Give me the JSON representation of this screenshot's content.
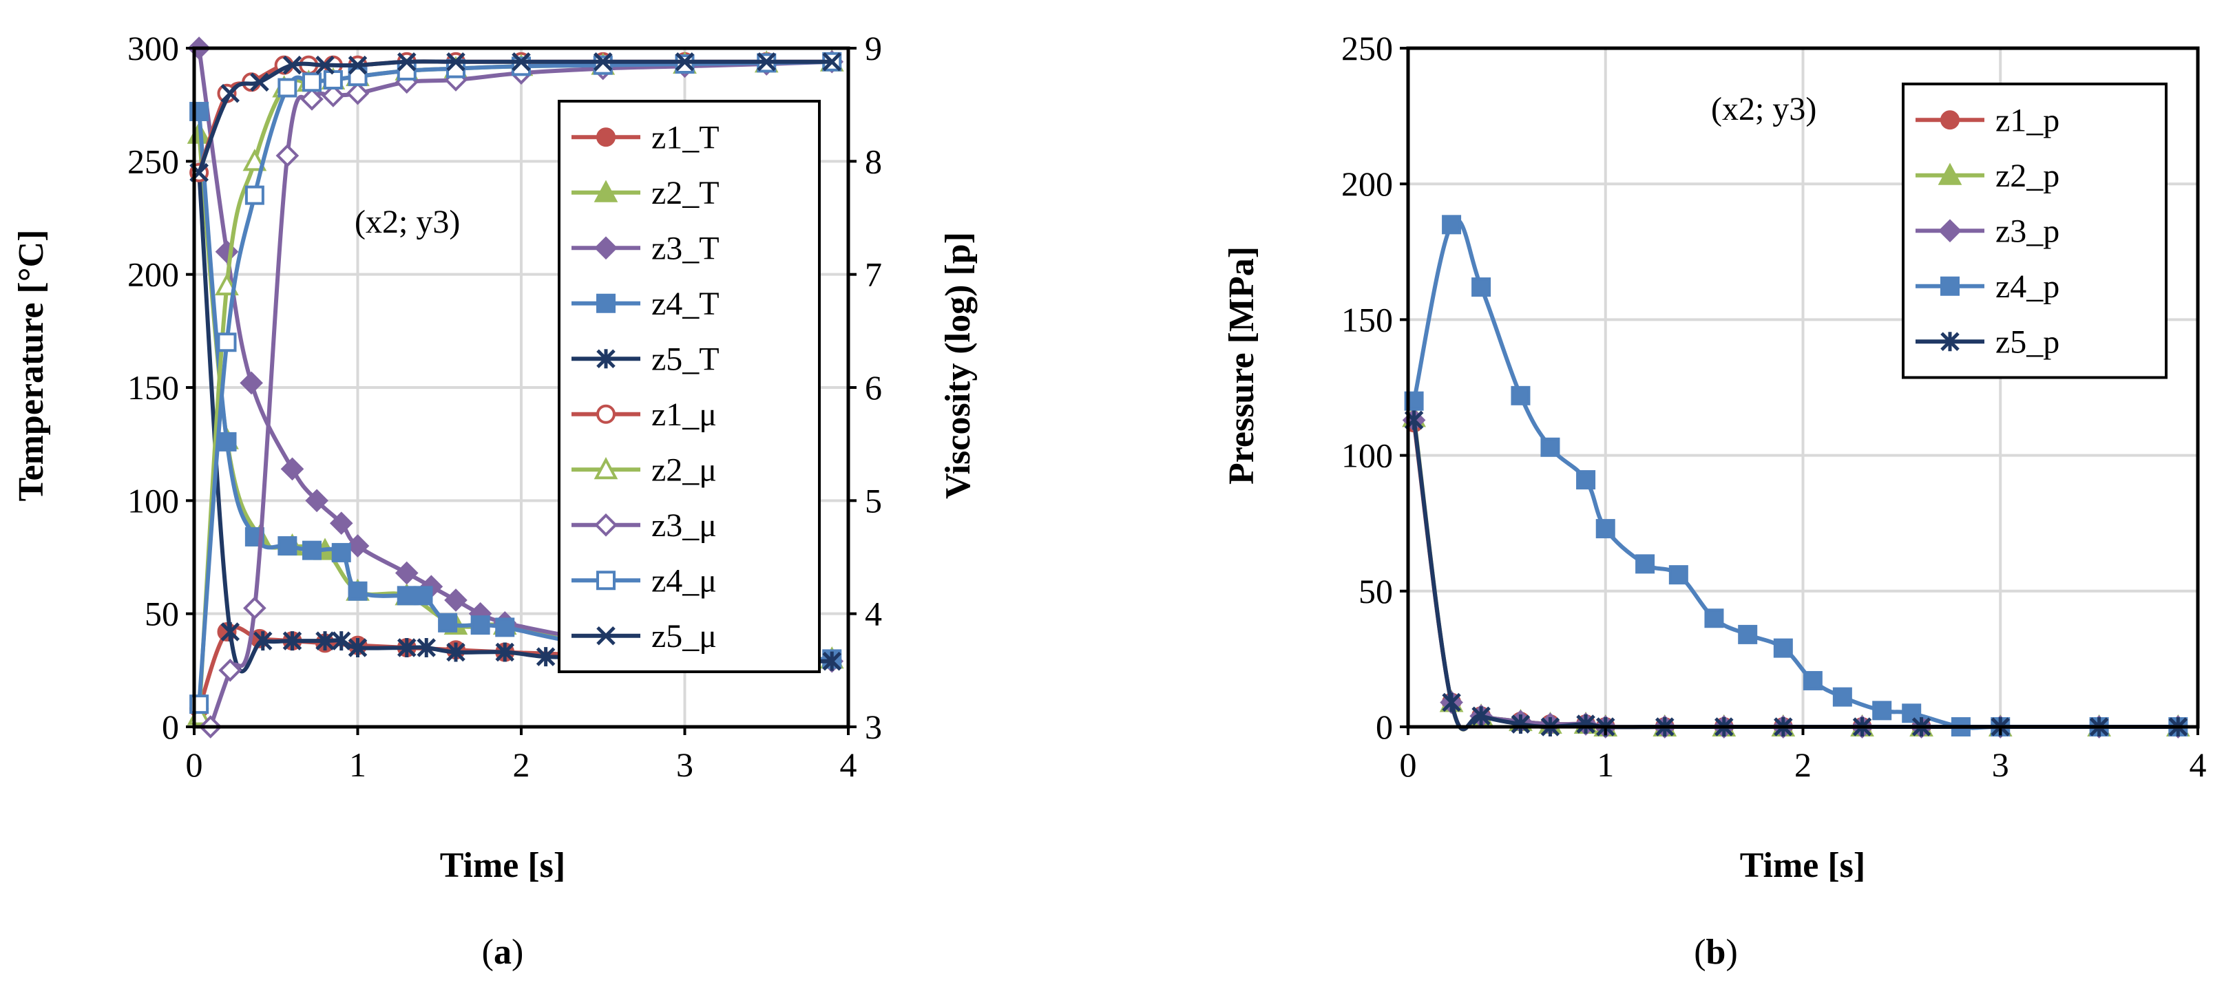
{
  "chart_data": [
    {
      "id": "a",
      "type": "line",
      "caption_prefix": "(",
      "caption_letter": "a",
      "caption_suffix": ")",
      "annotation": "(x2; y3)",
      "xlabel": "Time [s]",
      "ylabel": "Temperature [°C]",
      "y2label": "Viscosity (log) [p]",
      "xlim": [
        0,
        4
      ],
      "ylim": [
        0,
        300
      ],
      "y2lim": [
        3,
        9
      ],
      "xticks": [
        "0",
        "1",
        "2",
        "3",
        "4"
      ],
      "yticks": [
        "0",
        "50",
        "100",
        "150",
        "200",
        "250",
        "300"
      ],
      "y2ticks": [
        "3",
        "4",
        "5",
        "6",
        "7",
        "8",
        "9"
      ],
      "grid": true,
      "legend_position": "right",
      "series": [
        {
          "name": "z1_T",
          "axis": "left",
          "color": "#c0504d",
          "marker": "circle",
          "filled": true,
          "x": [
            0.03,
            0.2,
            0.4,
            0.6,
            0.8,
            1.0,
            1.3,
            1.6,
            1.9,
            2.3,
            2.6,
            3.0,
            3.5,
            3.9
          ],
          "y": [
            8,
            42,
            39,
            38,
            37,
            36,
            35,
            34,
            33,
            32,
            31,
            30,
            30,
            30
          ]
        },
        {
          "name": "z2_T",
          "axis": "left",
          "color": "#9bbb59",
          "marker": "triangle",
          "filled": true,
          "x": [
            0.03,
            0.2,
            0.4,
            0.6,
            0.8,
            1.0,
            1.3,
            1.6,
            1.9,
            2.3,
            2.6,
            3.0,
            3.5,
            3.9
          ],
          "y": [
            262,
            127,
            84,
            80,
            78,
            60,
            58,
            45,
            45,
            38,
            37,
            32,
            30,
            30
          ]
        },
        {
          "name": "z3_T",
          "axis": "left",
          "color": "#8064a2",
          "marker": "diamond",
          "filled": true,
          "x": [
            0.03,
            0.2,
            0.35,
            0.6,
            0.75,
            0.9,
            1.0,
            1.3,
            1.45,
            1.6,
            1.75,
            1.9,
            2.3,
            2.6,
            3.0,
            3.5,
            3.9
          ],
          "y": [
            300,
            210,
            152,
            114,
            100,
            90,
            80,
            68,
            62,
            56,
            50,
            46,
            40,
            36,
            33,
            30,
            29
          ]
        },
        {
          "name": "z4_T",
          "axis": "left",
          "color": "#4f81bd",
          "marker": "square",
          "filled": true,
          "x": [
            0.03,
            0.2,
            0.37,
            0.57,
            0.72,
            0.9,
            1.0,
            1.3,
            1.4,
            1.55,
            1.75,
            1.9,
            2.3,
            2.6,
            3.0,
            3.5,
            3.9
          ],
          "y": [
            272,
            126,
            84,
            80,
            78,
            77,
            60,
            58,
            58,
            46,
            45,
            44,
            38,
            37,
            32,
            30,
            30
          ]
        },
        {
          "name": "z5_T",
          "axis": "left",
          "color": "#1f3864",
          "marker": "star",
          "filled": true,
          "x": [
            0.03,
            0.22,
            0.42,
            0.6,
            0.8,
            0.9,
            1.0,
            1.3,
            1.42,
            1.6,
            1.9,
            2.15,
            2.4,
            2.6,
            3.0,
            3.5,
            3.9
          ],
          "y": [
            245,
            42,
            38,
            38,
            38,
            38,
            35,
            35,
            35,
            33,
            33,
            31,
            31,
            31,
            30,
            29,
            29
          ]
        },
        {
          "name": "z1_μ",
          "axis": "right",
          "color": "#c0504d",
          "marker": "circle",
          "filled": false,
          "x": [
            0.03,
            0.2,
            0.35,
            0.55,
            0.7,
            0.85,
            1.0,
            1.3,
            1.6,
            2.0,
            2.5,
            3.0,
            3.5,
            3.9
          ],
          "y": [
            7.9,
            8.6,
            8.7,
            8.85,
            8.85,
            8.85,
            8.85,
            8.88,
            8.88,
            8.88,
            8.88,
            8.88,
            8.88,
            8.88
          ]
        },
        {
          "name": "z2_μ",
          "axis": "right",
          "color": "#9bbb59",
          "marker": "triangle",
          "filled": false,
          "x": [
            0.03,
            0.2,
            0.37,
            0.55,
            0.7,
            0.85,
            1.0,
            1.3,
            1.6,
            2.0,
            2.5,
            3.0,
            3.5,
            3.9
          ],
          "y": [
            3.1,
            6.9,
            8.0,
            8.65,
            8.7,
            8.72,
            8.75,
            8.8,
            8.82,
            8.84,
            8.85,
            8.86,
            8.87,
            8.88
          ]
        },
        {
          "name": "z3_μ",
          "axis": "right",
          "color": "#8064a2",
          "marker": "diamond",
          "filled": false,
          "x": [
            0.1,
            0.22,
            0.37,
            0.57,
            0.72,
            0.85,
            1.0,
            1.3,
            1.6,
            2.0,
            2.5,
            3.0,
            3.5,
            3.9
          ],
          "y": [
            3.0,
            3.5,
            4.05,
            8.05,
            8.55,
            8.58,
            8.6,
            8.7,
            8.72,
            8.78,
            8.82,
            8.84,
            8.86,
            8.88
          ]
        },
        {
          "name": "z4_μ",
          "axis": "right",
          "color": "#4f81bd",
          "marker": "square",
          "filled": false,
          "x": [
            0.03,
            0.2,
            0.37,
            0.57,
            0.72,
            0.85,
            1.0,
            1.3,
            1.6,
            2.0,
            2.5,
            3.0,
            3.5,
            3.9
          ],
          "y": [
            3.2,
            6.4,
            7.7,
            8.65,
            8.7,
            8.72,
            8.75,
            8.8,
            8.82,
            8.84,
            8.85,
            8.86,
            8.87,
            8.88
          ]
        },
        {
          "name": "z5_μ",
          "axis": "right",
          "color": "#1f3864",
          "marker": "x",
          "filled": false,
          "x": [
            0.03,
            0.22,
            0.4,
            0.6,
            0.8,
            1.0,
            1.3,
            1.6,
            2.0,
            2.5,
            3.0,
            3.5,
            3.9
          ],
          "y": [
            7.9,
            8.6,
            8.7,
            8.85,
            8.85,
            8.85,
            8.88,
            8.88,
            8.88,
            8.88,
            8.88,
            8.88,
            8.88
          ]
        }
      ]
    },
    {
      "id": "b",
      "type": "line",
      "caption_prefix": "(",
      "caption_letter": "b",
      "caption_suffix": ")",
      "annotation": "(x2; y3)",
      "xlabel": "Time [s]",
      "ylabel": "Pressure [MPa]",
      "xlim": [
        0,
        4
      ],
      "ylim": [
        0,
        250
      ],
      "xticks": [
        "0",
        "1",
        "2",
        "3",
        "4"
      ],
      "yticks": [
        "0",
        "50",
        "100",
        "150",
        "200",
        "250"
      ],
      "grid": true,
      "legend_position": "top-right",
      "series": [
        {
          "name": "z1_p",
          "color": "#c0504d",
          "marker": "circle",
          "filled": true,
          "x": [
            0.03,
            0.22,
            0.37,
            0.57,
            0.72,
            0.9,
            1.0,
            1.3,
            1.6,
            1.9,
            2.3,
            2.6,
            3.0,
            3.5,
            3.9
          ],
          "y": [
            112,
            9,
            4,
            2,
            1,
            1,
            0,
            0,
            0,
            0,
            0,
            0,
            0,
            0,
            0
          ]
        },
        {
          "name": "z2_p",
          "color": "#9bbb59",
          "marker": "triangle",
          "filled": true,
          "x": [
            0.03,
            0.22,
            0.37,
            0.57,
            0.72,
            0.9,
            1.0,
            1.3,
            1.6,
            1.9,
            2.3,
            2.6,
            3.0,
            3.5,
            3.9
          ],
          "y": [
            114,
            9,
            4,
            2,
            1,
            1,
            0,
            0,
            0,
            0,
            0,
            0,
            0,
            0,
            0
          ]
        },
        {
          "name": "z3_p",
          "color": "#8064a2",
          "marker": "diamond",
          "filled": true,
          "x": [
            0.03,
            0.22,
            0.37,
            0.57,
            0.72,
            0.9,
            1.0,
            1.3,
            1.6,
            1.9,
            2.3,
            2.6,
            3.0,
            3.5,
            3.9
          ],
          "y": [
            113,
            9,
            4,
            2,
            1,
            1,
            0,
            0,
            0,
            0,
            0,
            0,
            0,
            0,
            0
          ]
        },
        {
          "name": "z4_p",
          "color": "#4f81bd",
          "marker": "square",
          "filled": true,
          "x": [
            0.03,
            0.22,
            0.37,
            0.57,
            0.72,
            0.9,
            1.0,
            1.2,
            1.37,
            1.55,
            1.72,
            1.9,
            2.05,
            2.2,
            2.4,
            2.55,
            2.8,
            3.0,
            3.5,
            3.9
          ],
          "y": [
            120,
            185,
            162,
            122,
            103,
            91,
            73,
            60,
            56,
            40,
            34,
            29,
            17,
            11,
            6,
            5,
            0,
            0,
            0,
            0
          ]
        },
        {
          "name": "z5_p",
          "color": "#1f3864",
          "marker": "star",
          "filled": true,
          "x": [
            0.03,
            0.22,
            0.37,
            0.57,
            0.72,
            0.9,
            1.0,
            1.3,
            1.6,
            1.9,
            2.3,
            2.6,
            3.0,
            3.5,
            3.9
          ],
          "y": [
            113,
            9,
            4,
            1,
            0,
            1,
            0,
            0,
            0,
            0,
            0,
            0,
            0,
            0,
            0
          ]
        }
      ]
    }
  ]
}
